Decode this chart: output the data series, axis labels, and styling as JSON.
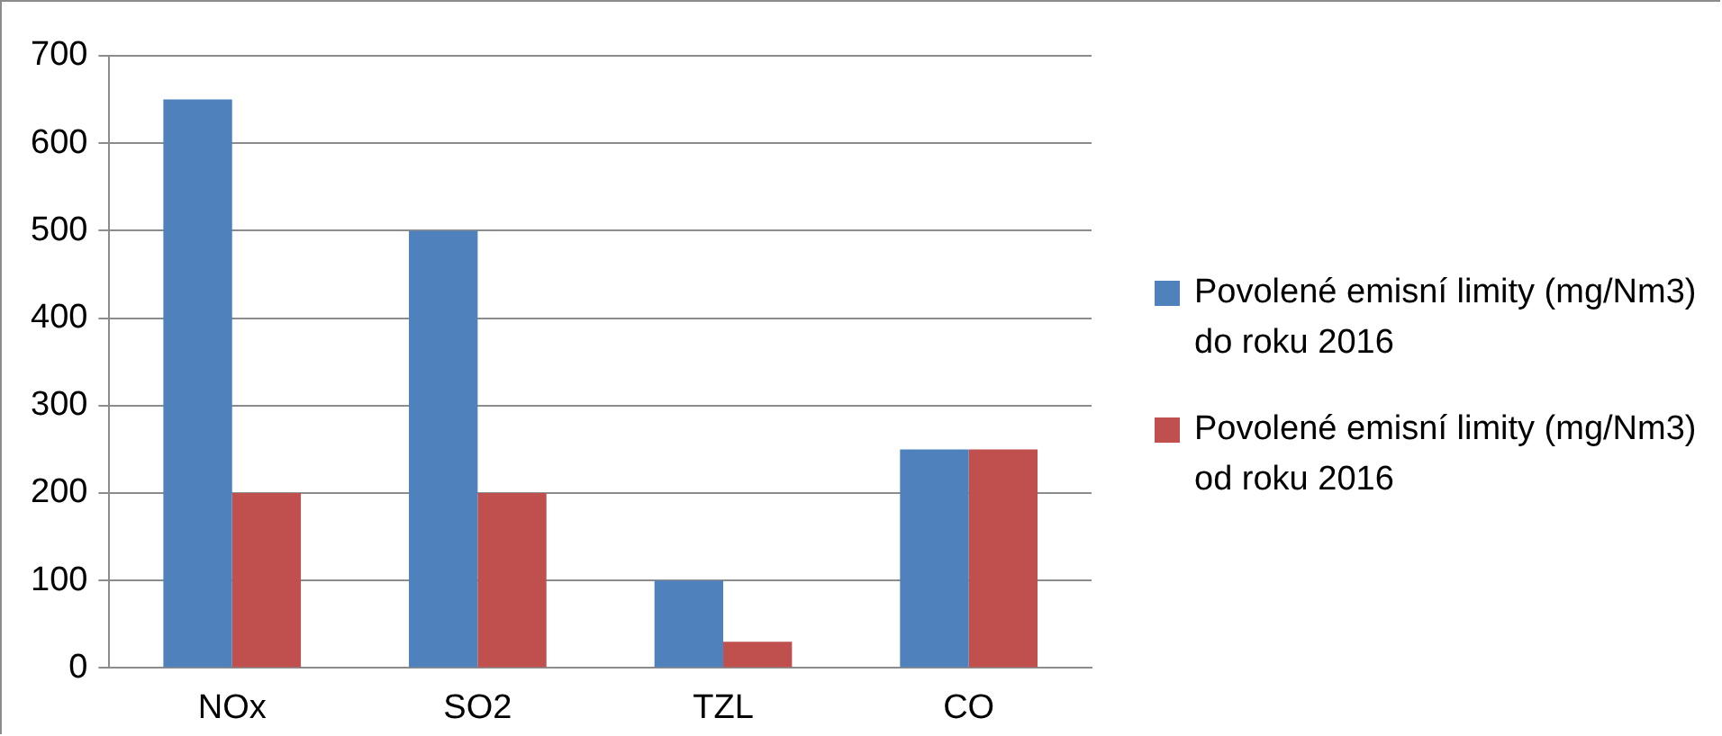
{
  "chart_data": {
    "type": "bar",
    "categories": [
      "NOx",
      "SO2",
      "TZL",
      "CO"
    ],
    "series": [
      {
        "name": "Povolené emisní limity (mg/Nm3) do roku 2016",
        "color": "#4f81bd",
        "values": [
          650,
          500,
          100,
          250
        ]
      },
      {
        "name": "Povolené emisní limity (mg/Nm3) od roku 2016",
        "color": "#c0504d",
        "values": [
          200,
          200,
          30,
          250
        ]
      }
    ],
    "ylim": [
      0,
      700
    ],
    "yticks": [
      0,
      100,
      200,
      300,
      400,
      500,
      600,
      700
    ],
    "grid": "y",
    "legend": "right"
  }
}
